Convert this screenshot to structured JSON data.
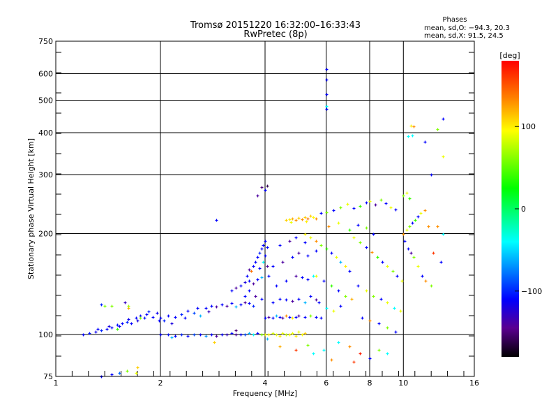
{
  "chart_data": {
    "type": "scatter",
    "title": "Tromsø 20151220 16:32:00–16:33:43",
    "subtitle": "RwPretec (8p)",
    "xlabel": "Frequency [MHz]",
    "ylabel": "Stationary phase Virtual Height [km]",
    "x_scale": "log",
    "y_scale": "log",
    "xlim": [
      1,
      16
    ],
    "ylim": [
      75,
      750
    ],
    "x_ticks": [
      1,
      2,
      4,
      6,
      8,
      10,
      16
    ],
    "x_tick_labels": [
      "1",
      "2",
      "4",
      "6",
      "8",
      "10",
      "16"
    ],
    "x_grid": [
      2,
      4,
      6,
      8,
      10
    ],
    "y_ticks": [
      75,
      100,
      200,
      300,
      400,
      500,
      600,
      750
    ],
    "y_tick_labels": [
      "75",
      "100",
      "200",
      "300",
      "400",
      "500",
      "600",
      "750"
    ],
    "y_grid": [
      100,
      200,
      300,
      400,
      500,
      600
    ],
    "grid": true,
    "stats": {
      "title": "Phases",
      "line_o": "mean, sd,O:  −94.3, 20.3",
      "line_x": "mean, sd,X:  91.5, 24.5"
    },
    "colorbar": {
      "label": "[deg]",
      "range": [
        -180,
        180
      ],
      "tick_values": [
        100,
        0,
        -100
      ],
      "tick_labels": [
        "100",
        "0",
        "−100"
      ],
      "stops": [
        {
          "v": -180,
          "c": "#000000"
        },
        {
          "v": -145,
          "c": "#5a0090"
        },
        {
          "v": -110,
          "c": "#0000ff"
        },
        {
          "v": -40,
          "c": "#00ffff"
        },
        {
          "v": 25,
          "c": "#00ff00"
        },
        {
          "v": 95,
          "c": "#ffff00"
        },
        {
          "v": 135,
          "c": "#ff8000"
        },
        {
          "v": 180,
          "c": "#ff0000"
        }
      ]
    },
    "point_format": [
      "frequency_MHz",
      "height_km",
      "phase_deg"
    ],
    "points": [
      [
        1.2,
        100,
        -110
      ],
      [
        1.25,
        101,
        -105
      ],
      [
        1.3,
        102,
        -115
      ],
      [
        1.32,
        104,
        -110
      ],
      [
        1.35,
        103,
        -100
      ],
      [
        1.4,
        104,
        -110
      ],
      [
        1.42,
        106,
        -120
      ],
      [
        1.45,
        105,
        -110
      ],
      [
        1.5,
        107,
        -105
      ],
      [
        1.52,
        106,
        -115
      ],
      [
        1.55,
        108,
        -110
      ],
      [
        1.6,
        109,
        -100
      ],
      [
        1.62,
        111,
        -115
      ],
      [
        1.65,
        108,
        -110
      ],
      [
        1.7,
        112,
        -110
      ],
      [
        1.72,
        110,
        -120
      ],
      [
        1.75,
        114,
        -110
      ],
      [
        1.8,
        112,
        -105
      ],
      [
        1.82,
        115,
        -110
      ],
      [
        1.85,
        117,
        -100
      ],
      [
        1.9,
        113,
        -110
      ],
      [
        1.95,
        116,
        -115
      ],
      [
        1.98,
        110,
        -110
      ],
      [
        1.35,
        123,
        -100
      ],
      [
        1.38,
        122,
        60
      ],
      [
        1.45,
        122,
        60
      ],
      [
        1.58,
        125,
        -130
      ],
      [
        1.62,
        120,
        120
      ],
      [
        1.62,
        122,
        70
      ],
      [
        1.75,
        112,
        60
      ],
      [
        1.5,
        104,
        40
      ],
      [
        1.35,
        75,
        -110
      ],
      [
        1.45,
        76,
        -110
      ],
      [
        1.52,
        77,
        -80
      ],
      [
        1.6,
        78,
        60
      ],
      [
        1.72,
        80,
        110
      ],
      [
        1.7,
        77,
        90
      ],
      [
        2.0,
        100,
        -110
      ],
      [
        2.1,
        100,
        -105
      ],
      [
        2.2,
        99,
        -110
      ],
      [
        2.3,
        100,
        -100
      ],
      [
        2.4,
        99,
        -110
      ],
      [
        2.5,
        100,
        -90
      ],
      [
        2.6,
        100,
        -110
      ],
      [
        2.7,
        99,
        -70
      ],
      [
        2.8,
        100,
        -110
      ],
      [
        2.9,
        99,
        -140
      ],
      [
        3.0,
        100,
        -110
      ],
      [
        3.1,
        100,
        -130
      ],
      [
        3.2,
        101,
        -110
      ],
      [
        3.3,
        100,
        -140
      ],
      [
        3.4,
        100,
        -110
      ],
      [
        3.5,
        100,
        -90
      ],
      [
        3.6,
        101,
        -60
      ],
      [
        3.7,
        100,
        -40
      ],
      [
        3.8,
        101,
        -110
      ],
      [
        3.9,
        100,
        60
      ],
      [
        2.15,
        98,
        -60
      ],
      [
        2.85,
        95,
        110
      ],
      [
        3.3,
        103,
        -150
      ],
      [
        2.0,
        112,
        -110
      ],
      [
        2.05,
        110,
        -100
      ],
      [
        2.1,
        114,
        -110
      ],
      [
        2.15,
        108,
        -120
      ],
      [
        2.2,
        113,
        -110
      ],
      [
        2.3,
        115,
        -100
      ],
      [
        2.35,
        112,
        -110
      ],
      [
        2.4,
        118,
        -110
      ],
      [
        2.5,
        116,
        -90
      ],
      [
        2.55,
        120,
        -110
      ],
      [
        2.6,
        114,
        -60
      ],
      [
        2.7,
        120,
        -110
      ],
      [
        2.75,
        117,
        -130
      ],
      [
        2.8,
        122,
        -110
      ],
      [
        2.9,
        121,
        -140
      ],
      [
        3.0,
        123,
        -110
      ],
      [
        3.1,
        122,
        -140
      ],
      [
        3.2,
        124,
        -110
      ],
      [
        3.3,
        121,
        -60
      ],
      [
        3.4,
        123,
        -110
      ],
      [
        3.5,
        125,
        -140
      ],
      [
        3.6,
        124,
        -110
      ],
      [
        3.7,
        122,
        -100
      ],
      [
        3.2,
        135,
        -110
      ],
      [
        3.3,
        138,
        -140
      ],
      [
        3.4,
        140,
        -110
      ],
      [
        3.5,
        143,
        -120
      ],
      [
        3.6,
        145,
        -110
      ],
      [
        3.7,
        142,
        -140
      ],
      [
        3.8,
        146,
        -110
      ],
      [
        3.9,
        148,
        -60
      ],
      [
        3.55,
        150,
        -110
      ],
      [
        3.6,
        156,
        -140
      ],
      [
        3.7,
        160,
        -110
      ],
      [
        3.75,
        165,
        -110
      ],
      [
        3.8,
        170,
        -110
      ],
      [
        3.85,
        175,
        -100
      ],
      [
        3.9,
        180,
        -110
      ],
      [
        3.95,
        185,
        -110
      ],
      [
        4.0,
        190,
        -110
      ],
      [
        4.05,
        182,
        -110
      ],
      [
        3.85,
        158,
        -110
      ],
      [
        3.95,
        165,
        -40
      ],
      [
        4.0,
        172,
        -110
      ],
      [
        4.05,
        160,
        -140
      ],
      [
        4.1,
        150,
        -110
      ],
      [
        3.65,
        155,
        140
      ],
      [
        3.5,
        130,
        -110
      ],
      [
        3.6,
        135,
        -110
      ],
      [
        3.75,
        130,
        -140
      ],
      [
        3.9,
        128,
        -110
      ],
      [
        4.0,
        112,
        -110
      ],
      [
        4.1,
        113,
        -140
      ],
      [
        4.2,
        112,
        -110
      ],
      [
        4.3,
        114,
        -60
      ],
      [
        4.4,
        113,
        -110
      ],
      [
        4.5,
        112,
        -140
      ],
      [
        4.6,
        114,
        130
      ],
      [
        4.7,
        113,
        -110
      ],
      [
        4.8,
        112,
        100
      ],
      [
        4.9,
        113,
        -110
      ],
      [
        5.0,
        114,
        -140
      ],
      [
        5.2,
        113,
        -110
      ],
      [
        5.4,
        114,
        60
      ],
      [
        5.6,
        113,
        -110
      ],
      [
        5.8,
        112,
        -110
      ],
      [
        4.2,
        125,
        -110
      ],
      [
        4.4,
        128,
        -110
      ],
      [
        4.6,
        127,
        -110
      ],
      [
        4.8,
        126,
        -140
      ],
      [
        5.0,
        128,
        -110
      ],
      [
        5.2,
        125,
        -60
      ],
      [
        5.4,
        130,
        -110
      ],
      [
        5.6,
        127,
        -140
      ],
      [
        4.3,
        140,
        -110
      ],
      [
        4.6,
        145,
        -110
      ],
      [
        4.9,
        150,
        -140
      ],
      [
        5.1,
        148,
        -110
      ],
      [
        5.3,
        146,
        -110
      ],
      [
        5.5,
        150,
        -40
      ],
      [
        4.2,
        160,
        -110
      ],
      [
        4.5,
        165,
        -140
      ],
      [
        4.8,
        170,
        -110
      ],
      [
        5.0,
        175,
        -140
      ],
      [
        5.3,
        172,
        -110
      ],
      [
        5.6,
        178,
        -110
      ],
      [
        4.4,
        185,
        -110
      ],
      [
        4.7,
        190,
        -140
      ],
      [
        4.9,
        195,
        -110
      ],
      [
        5.2,
        188,
        -110
      ],
      [
        4.0,
        100,
        90
      ],
      [
        4.1,
        100,
        95
      ],
      [
        4.2,
        101,
        85
      ],
      [
        4.3,
        100,
        90
      ],
      [
        4.4,
        99,
        100
      ],
      [
        4.5,
        101,
        90
      ],
      [
        4.6,
        100,
        80
      ],
      [
        4.7,
        100,
        95
      ],
      [
        4.8,
        101,
        90
      ],
      [
        4.9,
        99,
        100
      ],
      [
        5.0,
        102,
        90
      ],
      [
        5.1,
        100,
        95
      ],
      [
        5.2,
        101,
        110
      ],
      [
        4.05,
        97,
        -60
      ],
      [
        4.4,
        92,
        120
      ],
      [
        4.9,
        90,
        160
      ],
      [
        5.3,
        93,
        60
      ],
      [
        5.5,
        88,
        -40
      ],
      [
        4.6,
        220,
        110
      ],
      [
        4.7,
        221,
        100
      ],
      [
        4.8,
        222,
        120
      ],
      [
        4.9,
        220,
        130
      ],
      [
        5.0,
        223,
        110
      ],
      [
        5.1,
        221,
        130
      ],
      [
        5.2,
        224,
        110
      ],
      [
        5.3,
        222,
        140
      ],
      [
        5.4,
        226,
        110
      ],
      [
        5.5,
        224,
        95
      ],
      [
        5.6,
        222,
        130
      ],
      [
        4.75,
        217,
        90
      ],
      [
        5.25,
        218,
        100
      ],
      [
        5.2,
        200,
        100
      ],
      [
        5.4,
        195,
        90
      ],
      [
        5.6,
        190,
        130
      ],
      [
        5.8,
        185,
        60
      ],
      [
        6.0,
        180,
        40
      ],
      [
        6.2,
        175,
        -110
      ],
      [
        6.4,
        170,
        90
      ],
      [
        6.6,
        165,
        -60
      ],
      [
        6.8,
        160,
        100
      ],
      [
        7.0,
        155,
        -110
      ],
      [
        5.6,
        150,
        90
      ],
      [
        5.9,
        145,
        -110
      ],
      [
        6.2,
        140,
        40
      ],
      [
        6.5,
        135,
        -110
      ],
      [
        6.8,
        130,
        60
      ],
      [
        7.1,
        128,
        120
      ],
      [
        5.7,
        125,
        -110
      ],
      [
        6.0,
        120,
        -40
      ],
      [
        6.3,
        118,
        90
      ],
      [
        6.6,
        122,
        -110
      ],
      [
        5.8,
        230,
        -110
      ],
      [
        6.0,
        232,
        60
      ],
      [
        6.3,
        235,
        -110
      ],
      [
        6.6,
        240,
        60
      ],
      [
        6.9,
        245,
        90
      ],
      [
        7.2,
        238,
        -110
      ],
      [
        7.5,
        242,
        40
      ],
      [
        7.8,
        248,
        -110
      ],
      [
        8.0,
        250,
        90
      ],
      [
        8.3,
        244,
        -140
      ],
      [
        8.6,
        252,
        60
      ],
      [
        8.9,
        246,
        -110
      ],
      [
        9.2,
        240,
        90
      ],
      [
        9.5,
        236,
        -110
      ],
      [
        6.1,
        210,
        130
      ],
      [
        6.5,
        215,
        90
      ],
      [
        7.0,
        205,
        40
      ],
      [
        7.4,
        212,
        -110
      ],
      [
        7.8,
        208,
        60
      ],
      [
        8.2,
        200,
        -110
      ],
      [
        7.2,
        195,
        90
      ],
      [
        7.5,
        188,
        60
      ],
      [
        7.8,
        182,
        -110
      ],
      [
        8.1,
        176,
        130
      ],
      [
        8.4,
        170,
        40
      ],
      [
        8.7,
        165,
        -110
      ],
      [
        9.0,
        160,
        90
      ],
      [
        9.3,
        155,
        60
      ],
      [
        9.6,
        150,
        -110
      ],
      [
        9.9,
        145,
        90
      ],
      [
        7.4,
        140,
        -110
      ],
      [
        7.8,
        135,
        90
      ],
      [
        8.2,
        130,
        60
      ],
      [
        8.6,
        128,
        -110
      ],
      [
        9.0,
        125,
        90
      ],
      [
        9.4,
        120,
        -40
      ],
      [
        9.8,
        118,
        90
      ],
      [
        7.6,
        112,
        -110
      ],
      [
        8.0,
        110,
        130
      ],
      [
        8.5,
        108,
        -110
      ],
      [
        9.0,
        105,
        60
      ],
      [
        9.5,
        102,
        -110
      ],
      [
        10.0,
        200,
        130
      ],
      [
        10.2,
        205,
        90
      ],
      [
        10.4,
        210,
        60
      ],
      [
        10.6,
        215,
        -110
      ],
      [
        10.8,
        220,
        40
      ],
      [
        11.0,
        225,
        -110
      ],
      [
        11.2,
        230,
        90
      ],
      [
        11.5,
        235,
        130
      ],
      [
        10.1,
        190,
        -110
      ],
      [
        10.3,
        180,
        -110
      ],
      [
        10.5,
        175,
        -140
      ],
      [
        10.7,
        170,
        60
      ],
      [
        11.0,
        160,
        90
      ],
      [
        11.3,
        150,
        -110
      ],
      [
        11.6,
        145,
        130
      ],
      [
        12.0,
        140,
        60
      ],
      [
        10.0,
        260,
        60
      ],
      [
        10.2,
        265,
        90
      ],
      [
        10.4,
        255,
        40
      ],
      [
        11.8,
        210,
        130
      ],
      [
        12.5,
        210,
        130
      ],
      [
        13.0,
        200,
        -40
      ],
      [
        12.2,
        175,
        160
      ],
      [
        12.8,
        165,
        -110
      ],
      [
        6.5,
        95,
        -40
      ],
      [
        7.0,
        92,
        130
      ],
      [
        7.5,
        88,
        170
      ],
      [
        8.0,
        85,
        -110
      ],
      [
        8.5,
        90,
        60
      ],
      [
        9.0,
        88,
        -40
      ],
      [
        6.2,
        84,
        130
      ],
      [
        7.2,
        83,
        160
      ],
      [
        5.9,
        90,
        -40
      ],
      [
        6.0,
        470,
        -110
      ],
      [
        6.0,
        480,
        -40
      ],
      [
        6.0,
        520,
        -110
      ],
      [
        6.0,
        575,
        -110
      ],
      [
        6.0,
        620,
        -110
      ],
      [
        10.5,
        420,
        100
      ],
      [
        10.7,
        418,
        130
      ],
      [
        10.3,
        390,
        -40
      ],
      [
        10.6,
        392,
        -40
      ],
      [
        11.5,
        375,
        -110
      ],
      [
        13.0,
        440,
        -110
      ],
      [
        12.5,
        410,
        60
      ],
      [
        12.0,
        300,
        -110
      ],
      [
        13.0,
        340,
        90
      ],
      [
        3.9,
        275,
        -150
      ],
      [
        4.0,
        270,
        -110
      ],
      [
        4.05,
        278,
        -160
      ],
      [
        2.9,
        220,
        -110
      ],
      [
        3.8,
        260,
        -140
      ]
    ]
  }
}
